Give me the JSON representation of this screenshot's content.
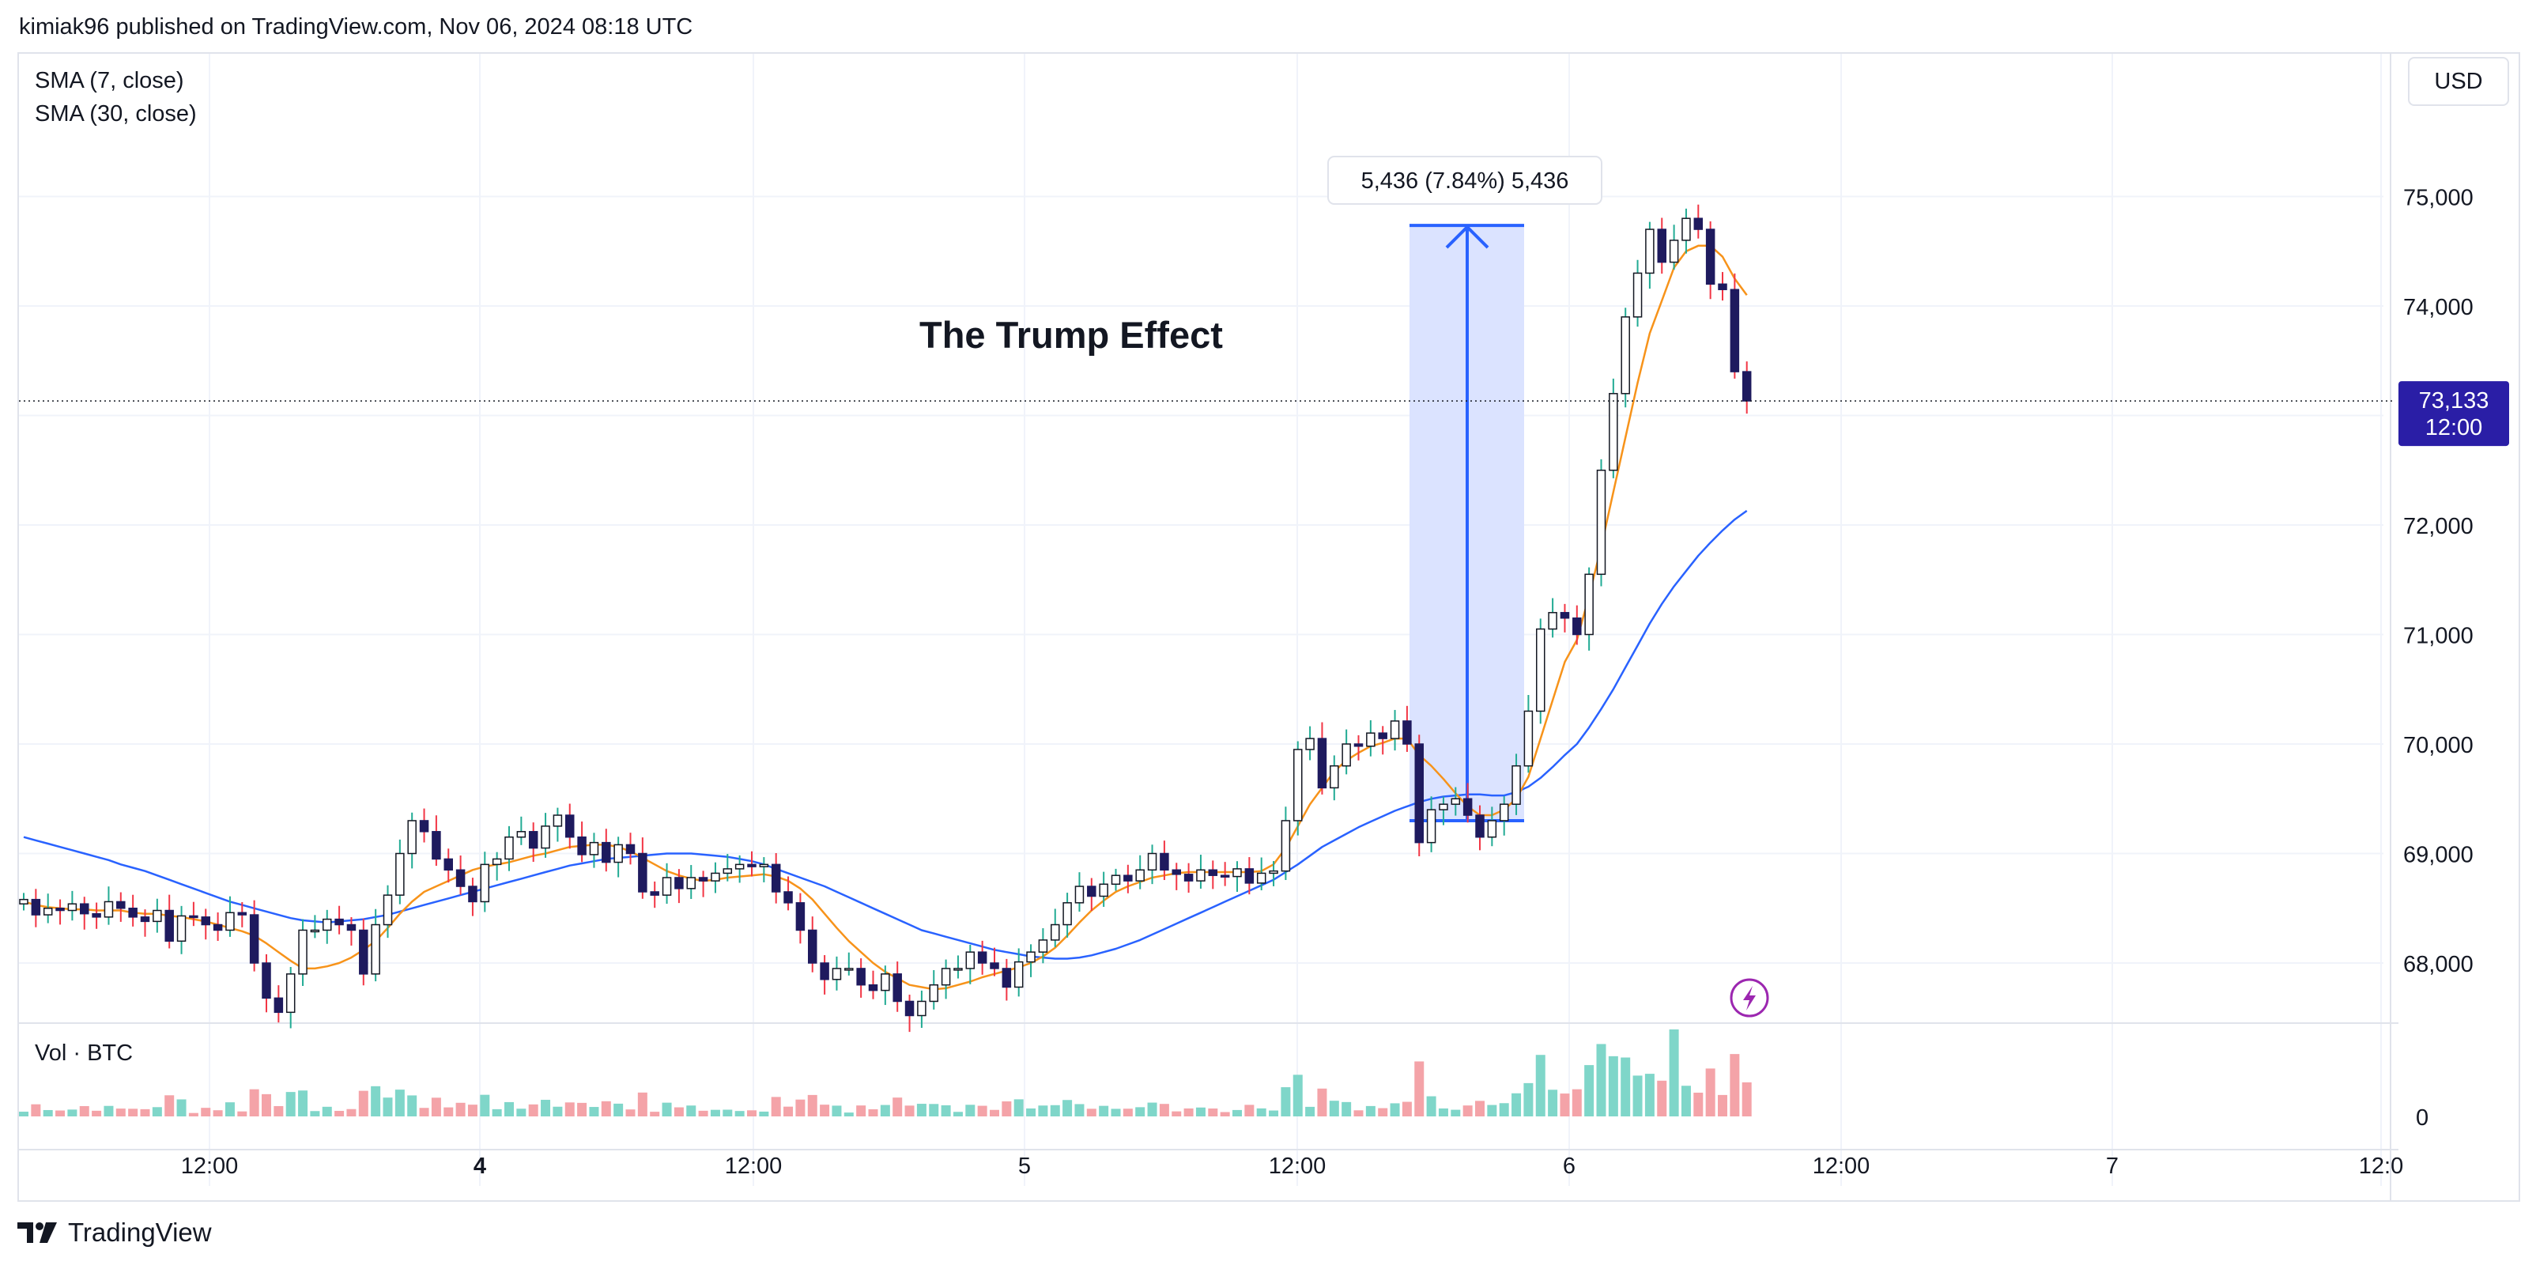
{
  "header": {
    "text": "kimiak96 published on TradingView.com, Nov 06, 2024 08:18 UTC"
  },
  "legend": {
    "sma7": "SMA (7, close)",
    "sma30": "SMA (30, close)",
    "volume": "Vol · BTC"
  },
  "currency": "USD",
  "annotation": {
    "title": "The Trump Effect",
    "measure": "5,436 (7.84%) 5,436"
  },
  "price_label": {
    "value": "73,133",
    "time": "12:00"
  },
  "footer": {
    "brand": "TradingView"
  },
  "colors": {
    "up": "#22ab94",
    "down": "#f23645",
    "down_body": "#1e1a5e",
    "sma7": "#f7931a",
    "sma30": "#2962ff",
    "measure_fill": "#dbe3ff",
    "measure_line": "#2962ff",
    "price_tag": "#2a1ea6",
    "vol_up": "#7fd6c9",
    "vol_down": "#f4a3a8",
    "bolt": "#9c27b0"
  },
  "chart_data": {
    "type": "candlestick",
    "symbol_quote": "USD",
    "y_range": [
      67500,
      75500
    ],
    "price_ticks": [
      68000,
      69000,
      70000,
      71000,
      72000,
      73000,
      74000,
      75000
    ],
    "price_tick_labels": [
      "68,000",
      "69,000",
      "70,000",
      "71,000",
      "72,000",
      "74,000",
      "75,000"
    ],
    "volume_tick_label": "0",
    "x_tick_labels": [
      "12:00",
      "4",
      "12:00",
      "5",
      "12:00",
      "6",
      "12:00",
      "7",
      "12:0"
    ],
    "bar_interval": "1h",
    "last_price": 73133,
    "measure": {
      "from": 69300,
      "to": 74736,
      "change": 5436,
      "change_pct": 7.84
    },
    "close": [
      68580,
      68440,
      68500,
      68480,
      68540,
      68450,
      68420,
      68560,
      68500,
      68420,
      68380,
      68480,
      68200,
      68430,
      68420,
      68350,
      68300,
      68460,
      68440,
      68000,
      67680,
      67550,
      67900,
      68300,
      68300,
      68400,
      68350,
      68300,
      67900,
      68350,
      68620,
      69000,
      69300,
      69200,
      68950,
      68850,
      68700,
      68560,
      68900,
      68950,
      69150,
      69200,
      69050,
      69250,
      69350,
      69150,
      68990,
      69100,
      68920,
      69080,
      69000,
      68650,
      68620,
      68780,
      68680,
      68780,
      68750,
      68820,
      68860,
      68900,
      68880,
      68900,
      68650,
      68550,
      68300,
      68000,
      67850,
      67950,
      67950,
      67800,
      67750,
      67900,
      67650,
      67520,
      67650,
      67800,
      67950,
      67950,
      68100,
      68000,
      67950,
      67780,
      68010,
      68100,
      68210,
      68350,
      68550,
      68700,
      68610,
      68720,
      68800,
      68750,
      68850,
      69000,
      68850,
      68810,
      68750,
      68850,
      68800,
      68790,
      68860,
      68730,
      68820,
      68840,
      69300,
      69950,
      70050,
      69600,
      69800,
      70000,
      69980,
      70100,
      70050,
      70210,
      70000,
      69100,
      69400,
      69450,
      69500,
      69350,
      69150,
      69300,
      69450,
      69800,
      70300,
      71050,
      71200,
      71150,
      71000,
      71550,
      72500,
      73200,
      73900,
      74300,
      74700,
      74400,
      74600,
      74800,
      74700,
      74200,
      74150,
      73400,
      73133
    ],
    "sma7": [
      68560,
      68530,
      68510,
      68500,
      68490,
      68490,
      68480,
      68480,
      68480,
      68460,
      68450,
      68450,
      68430,
      68420,
      68400,
      68380,
      68350,
      68320,
      68290,
      68250,
      68180,
      68100,
      68020,
      67950,
      67950,
      67970,
      68000,
      68050,
      68120,
      68200,
      68320,
      68450,
      68560,
      68650,
      68700,
      68750,
      68800,
      68850,
      68880,
      68900,
      68920,
      68950,
      68980,
      69000,
      69030,
      69060,
      69070,
      69080,
      69080,
      69060,
      69020,
      68960,
      68900,
      68840,
      68800,
      68770,
      68750,
      68760,
      68780,
      68790,
      68800,
      68810,
      68790,
      68750,
      68680,
      68580,
      68450,
      68320,
      68200,
      68100,
      68000,
      67920,
      67860,
      67800,
      67780,
      67760,
      67770,
      67800,
      67830,
      67870,
      67900,
      67930,
      67960,
      68000,
      68060,
      68140,
      68250,
      68370,
      68480,
      68570,
      68650,
      68700,
      68740,
      68780,
      68800,
      68820,
      68830,
      68830,
      68830,
      68830,
      68830,
      68830,
      68840,
      68900,
      69050,
      69250,
      69450,
      69600,
      69750,
      69850,
      69920,
      69980,
      70010,
      70050,
      70050,
      69900,
      69800,
      69680,
      69550,
      69430,
      69350,
      69350,
      69400,
      69500,
      69700,
      70050,
      70400,
      70750,
      70950,
      71350,
      71800,
      72300,
      72800,
      73300,
      73750,
      74050,
      74350,
      74500,
      74550,
      74550,
      74450,
      74250,
      74100
    ],
    "sma30": [
      69150,
      69120,
      69090,
      69060,
      69030,
      69000,
      68970,
      68940,
      68900,
      68870,
      68840,
      68800,
      68760,
      68720,
      68680,
      68640,
      68600,
      68560,
      68530,
      68500,
      68470,
      68440,
      68410,
      68390,
      68380,
      68370,
      68380,
      68390,
      68400,
      68420,
      68440,
      68470,
      68500,
      68530,
      68560,
      68590,
      68620,
      68650,
      68680,
      68710,
      68740,
      68770,
      68800,
      68830,
      68860,
      68890,
      68910,
      68930,
      68950,
      68960,
      68970,
      68980,
      68990,
      69000,
      69000,
      69000,
      68990,
      68980,
      68970,
      68950,
      68930,
      68900,
      68860,
      68820,
      68780,
      68740,
      68700,
      68650,
      68600,
      68550,
      68500,
      68450,
      68400,
      68350,
      68300,
      68270,
      68240,
      68210,
      68180,
      68150,
      68120,
      68100,
      68080,
      68060,
      68050,
      68040,
      68040,
      68050,
      68070,
      68100,
      68130,
      68170,
      68210,
      68260,
      68310,
      68360,
      68410,
      68460,
      68510,
      68560,
      68610,
      68660,
      68710,
      68760,
      68830,
      68900,
      68980,
      69060,
      69120,
      69180,
      69240,
      69290,
      69340,
      69390,
      69430,
      69470,
      69500,
      69520,
      69530,
      69540,
      69540,
      69530,
      69530,
      69560,
      69610,
      69690,
      69790,
      69900,
      70000,
      70150,
      70320,
      70500,
      70700,
      70900,
      71100,
      71280,
      71440,
      71580,
      71720,
      71840,
      71950,
      72050,
      72130
    ],
    "volume_range": [
      0,
      1400
    ]
  }
}
